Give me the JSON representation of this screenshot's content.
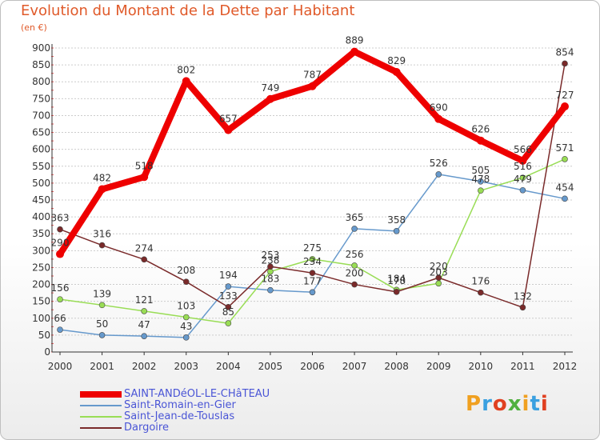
{
  "title": "Evolution du Montant de la Dette par Habitant",
  "unit_label": "(en €)",
  "logo_text": "Proxiti",
  "chart_data": {
    "type": "line",
    "title": "Evolution du Montant de la Dette par Habitant",
    "subtitle": "(en €)",
    "xlabel": "",
    "ylabel": "",
    "x": [
      "2000",
      "2001",
      "2002",
      "2003",
      "2004",
      "2005",
      "2006",
      "2007",
      "2008",
      "2009",
      "2010",
      "2011",
      "2012"
    ],
    "ylim": [
      0,
      900
    ],
    "yticks": [
      0,
      50,
      100,
      150,
      200,
      250,
      300,
      350,
      400,
      450,
      500,
      550,
      600,
      650,
      700,
      750,
      800,
      850,
      900
    ],
    "grid": "horizontal",
    "legend_position": "bottom-left",
    "series": [
      {
        "name": "SAINT-ANDéOL-LE-CHâTEAU",
        "color": "#ee0000",
        "values": [
          290,
          482,
          518,
          802,
          657,
          749,
          787,
          889,
          829,
          690,
          626,
          566,
          727
        ]
      },
      {
        "name": "Saint-Romain-en-Gier",
        "color": "#6699cc",
        "values": [
          66,
          50,
          47,
          43,
          194,
          183,
          177,
          365,
          358,
          526,
          505,
          479,
          454
        ]
      },
      {
        "name": "Saint-Jean-de-Touslas",
        "color": "#99dd55",
        "values": [
          156,
          139,
          121,
          103,
          85,
          238,
          275,
          256,
          184,
          203,
          478,
          516,
          571
        ]
      },
      {
        "name": "Dargoire",
        "color": "#7a2a2a",
        "values": [
          363,
          316,
          274,
          208,
          133,
          253,
          234,
          200,
          178,
          220,
          176,
          132,
          854
        ]
      }
    ]
  }
}
